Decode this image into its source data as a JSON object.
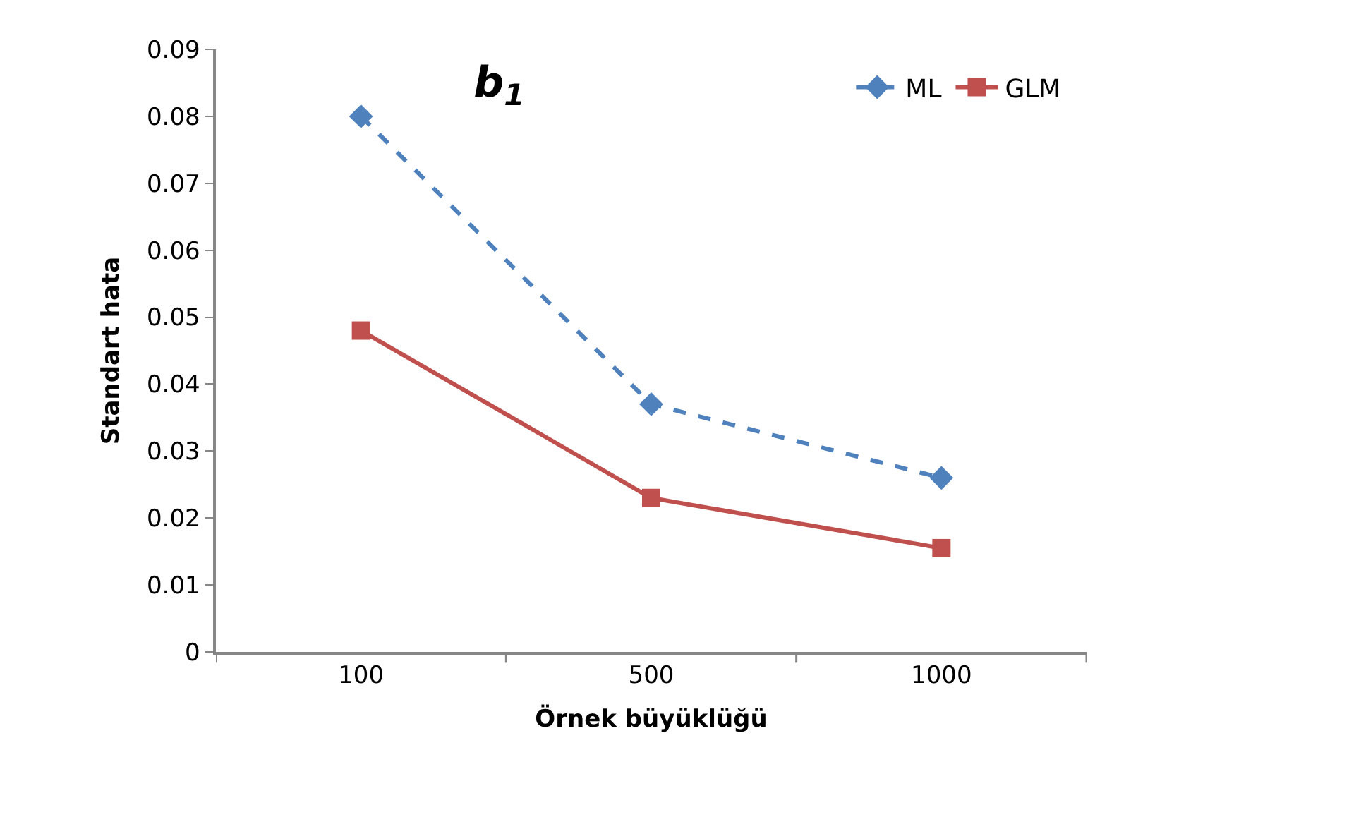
{
  "chart_data": {
    "type": "line",
    "title": "b$_{1}$",
    "xlabel": "Örnek büyüklüğü",
    "ylabel": "Standart hata",
    "categories": [
      "100",
      "500",
      "1000"
    ],
    "series": [
      {
        "name": "ML",
        "color": "#4f81bd",
        "values": [
          0.08,
          0.037,
          0.026
        ],
        "marker": "diamond",
        "line_style": "dashed"
      },
      {
        "name": "GLM",
        "color": "#c0504d",
        "values": [
          0.048,
          0.023,
          0.0155
        ],
        "marker": "square",
        "line_style": "solid"
      }
    ],
    "ylim": [
      0,
      0.09
    ],
    "yticks": [
      0,
      0.01,
      0.02,
      0.03,
      0.04,
      0.05,
      0.06,
      0.07,
      0.08,
      0.09
    ],
    "legend": "top right"
  }
}
